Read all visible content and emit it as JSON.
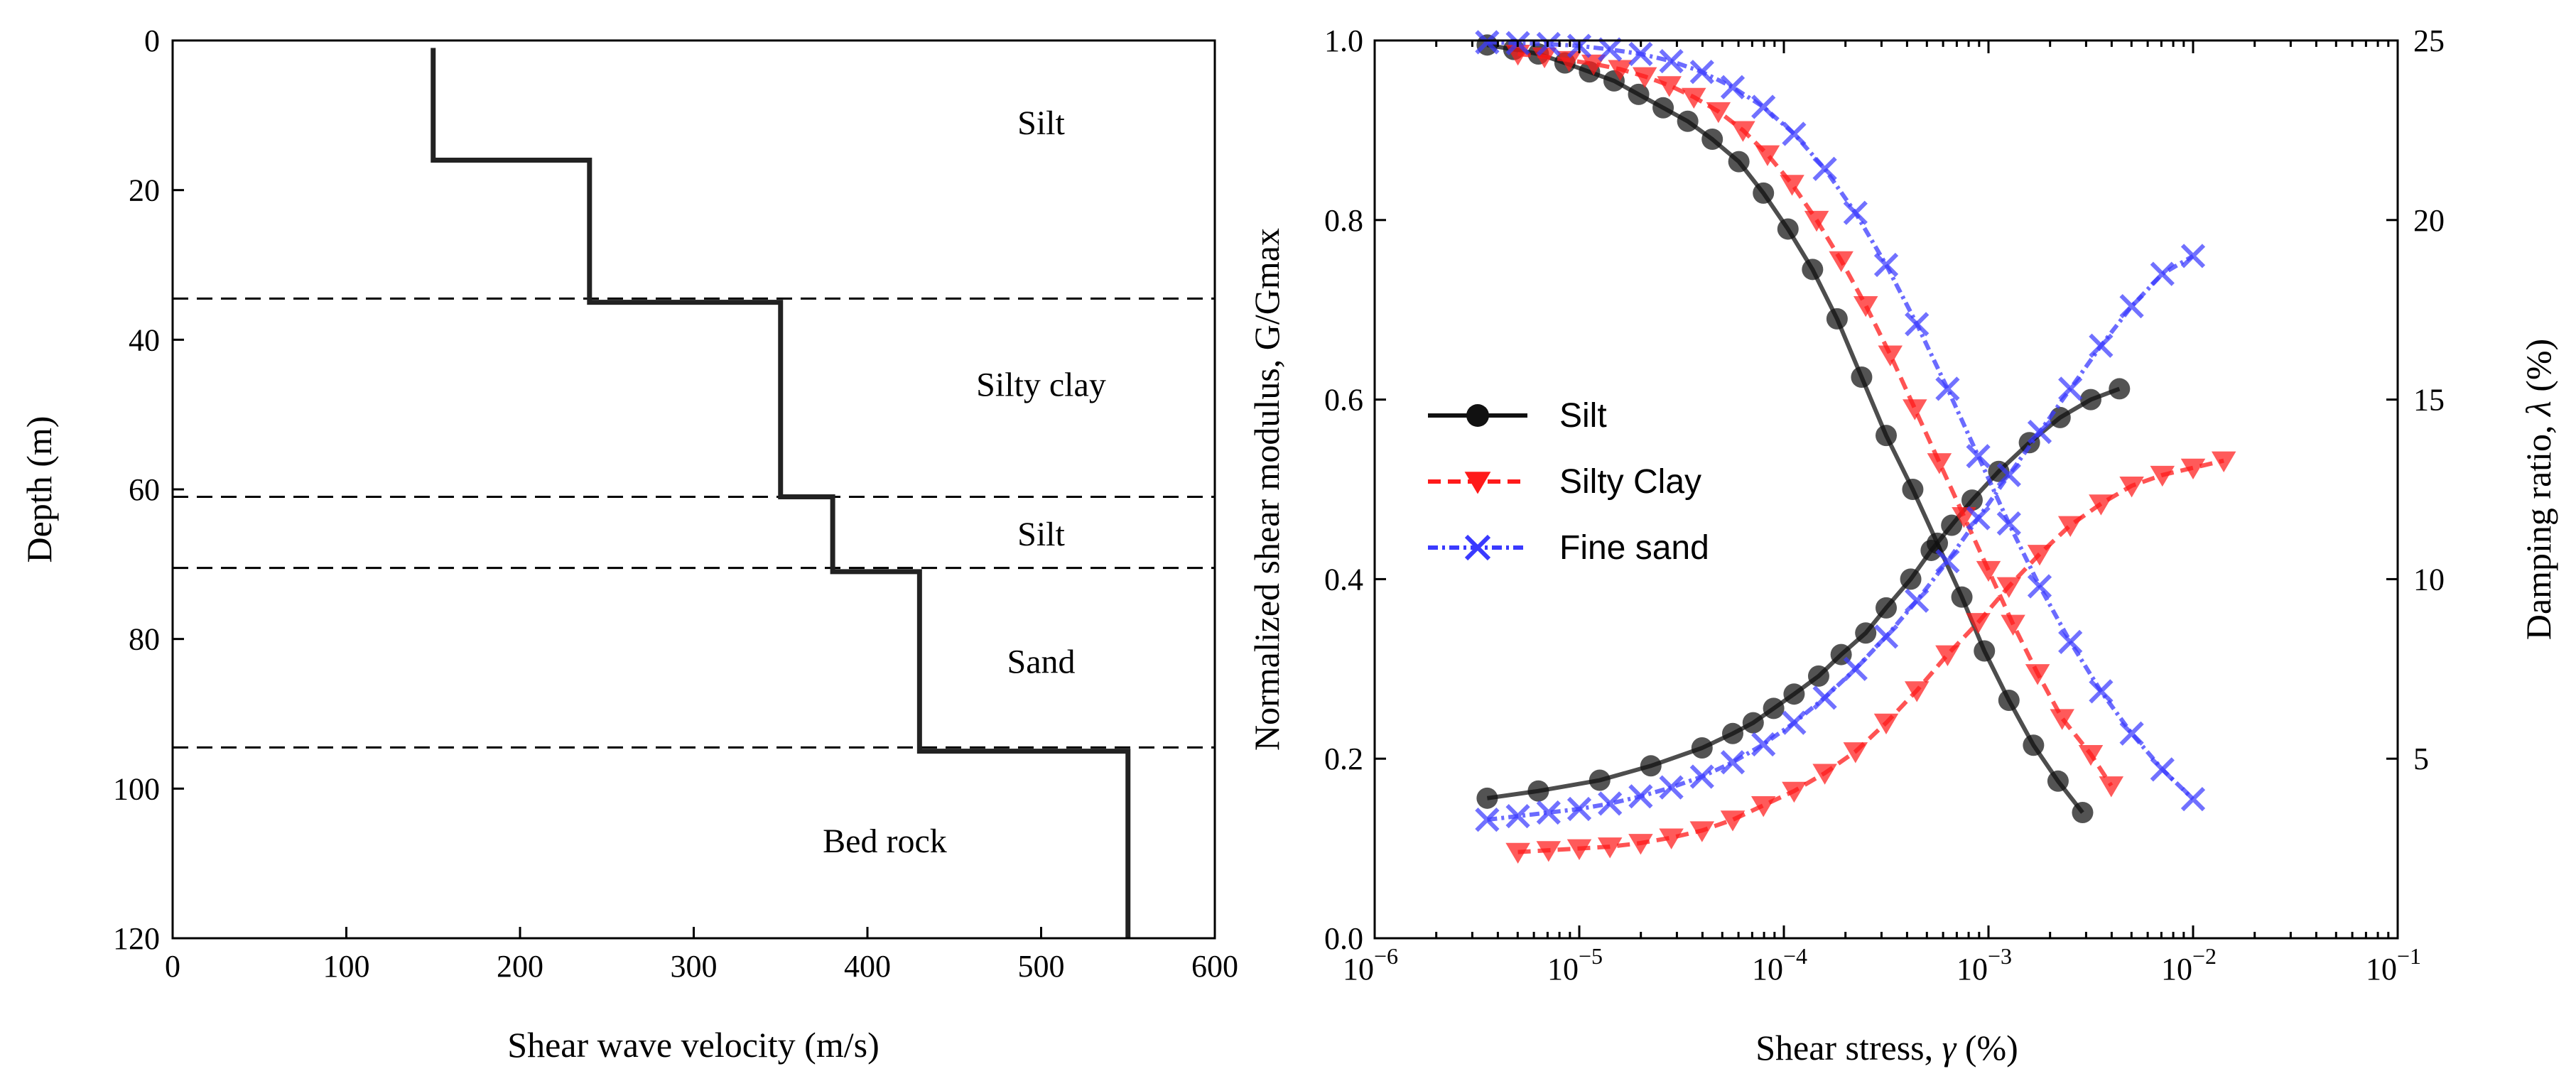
{
  "chart_data": [
    {
      "type": "line",
      "xlabel": "Shear wave velocity (m/s)",
      "ylabel": "Depth (m)",
      "xlim": [
        0,
        600
      ],
      "ylim": [
        120,
        0
      ],
      "xticks": [
        0,
        100,
        200,
        300,
        400,
        500,
        600
      ],
      "yticks": [
        0,
        20,
        40,
        60,
        80,
        100,
        120
      ],
      "profile": {
        "name": "Vs profile",
        "color": "#222222",
        "points": [
          [
            150,
            1
          ],
          [
            150,
            16
          ],
          [
            240,
            16
          ],
          [
            240,
            35
          ],
          [
            350,
            35
          ],
          [
            350,
            61
          ],
          [
            380,
            61
          ],
          [
            380,
            71
          ],
          [
            430,
            71
          ],
          [
            430,
            95
          ],
          [
            550,
            95
          ],
          [
            550,
            120
          ]
        ]
      },
      "layer_boundaries": [
        34.5,
        61,
        70.5,
        94.5
      ],
      "layers": [
        {
          "label": "Silt",
          "x": 500,
          "y": 11
        },
        {
          "label": "Silty clay",
          "x": 500,
          "y": 46
        },
        {
          "label": "Silt",
          "x": 500,
          "y": 66
        },
        {
          "label": "Sand",
          "x": 500,
          "y": 83
        },
        {
          "label": "Bed rock",
          "x": 410,
          "y": 107
        }
      ]
    },
    {
      "type": "line",
      "xlabel_prefix": "Shear stress, ",
      "xlabel_symbol": "γ",
      "xlabel_suffix": " (%)",
      "ylabel": "Normalized shear modulus, G/Gmax",
      "y2label_prefix": "Damping ratio, ",
      "y2label_symbol": "λ",
      "y2label_suffix": " (%)",
      "xscale": "log",
      "xlim_exp": [
        -6,
        -1
      ],
      "xtick_base": "10",
      "xtick_exponents": [
        "−6",
        "−5",
        "−4",
        "−3",
        "−2",
        "−1"
      ],
      "ylim": [
        0,
        1
      ],
      "yticks": [
        "0.0",
        "0.2",
        "0.4",
        "0.6",
        "0.8",
        "1.0"
      ],
      "y2lim": [
        0,
        25
      ],
      "y2ticks": [
        "5",
        "10",
        "15",
        "20",
        "25"
      ],
      "legend": {
        "position": "center-left"
      },
      "series": [
        {
          "name": "Silt",
          "color": "#111111",
          "marker": "circle",
          "dash": "",
          "x_exp": [
            -5.45,
            -5.32,
            -5.2,
            -5.07,
            -4.95,
            -4.83,
            -4.71,
            -4.59,
            -4.47,
            -4.35,
            -4.22,
            -4.1,
            -3.98,
            -3.86,
            -3.74,
            -3.62,
            -3.5,
            -3.37,
            -3.25,
            -3.13,
            -3.02,
            -2.9,
            -2.78,
            -2.66,
            -2.54
          ],
          "modulus": [
            0.995,
            0.99,
            0.985,
            0.975,
            0.965,
            0.955,
            0.94,
            0.925,
            0.91,
            0.89,
            0.865,
            0.83,
            0.79,
            0.745,
            0.69,
            0.625,
            0.56,
            0.5,
            0.44,
            0.38,
            0.32,
            0.265,
            0.215,
            0.175,
            0.14
          ],
          "damping_x_exp": [
            -5.45,
            -5.2,
            -4.9,
            -4.65,
            -4.4,
            -4.25,
            -4.15,
            -4.05,
            -3.95,
            -3.83,
            -3.72,
            -3.6,
            -3.5,
            -3.38,
            -3.28,
            -3.18,
            -3.08,
            -2.95,
            -2.8,
            -2.65,
            -2.5,
            -2.36
          ],
          "damping": [
            3.9,
            4.1,
            4.4,
            4.8,
            5.3,
            5.7,
            6.0,
            6.4,
            6.8,
            7.3,
            7.9,
            8.5,
            9.2,
            10.0,
            10.8,
            11.5,
            12.2,
            13.0,
            13.8,
            14.5,
            15.0,
            15.3
          ]
        },
        {
          "name": "Silty Clay",
          "color": "#ff1a1a",
          "marker": "triangle-down",
          "dash": "18,10",
          "x_exp": [
            -5.3,
            -5.17,
            -5.05,
            -4.93,
            -4.8,
            -4.68,
            -4.56,
            -4.44,
            -4.32,
            -4.2,
            -4.08,
            -3.96,
            -3.84,
            -3.72,
            -3.6,
            -3.48,
            -3.36,
            -3.24,
            -3.12,
            -3.0,
            -2.88,
            -2.76,
            -2.64,
            -2.5,
            -2.4
          ],
          "modulus": [
            0.985,
            0.982,
            0.978,
            0.974,
            0.968,
            0.96,
            0.95,
            0.937,
            0.921,
            0.9,
            0.873,
            0.84,
            0.8,
            0.755,
            0.705,
            0.65,
            0.59,
            0.53,
            0.47,
            0.41,
            0.35,
            0.295,
            0.245,
            0.205,
            0.17
          ],
          "damping_x_exp": [
            -5.3,
            -5.15,
            -5.0,
            -4.85,
            -4.7,
            -4.55,
            -4.4,
            -4.25,
            -4.1,
            -3.95,
            -3.8,
            -3.65,
            -3.5,
            -3.35,
            -3.2,
            -3.05,
            -2.9,
            -2.75,
            -2.6,
            -2.45,
            -2.3,
            -2.15,
            -2.0,
            -1.85
          ],
          "damping": [
            2.4,
            2.45,
            2.5,
            2.55,
            2.65,
            2.8,
            3.0,
            3.3,
            3.7,
            4.1,
            4.6,
            5.2,
            6.0,
            6.9,
            7.9,
            8.8,
            9.8,
            10.7,
            11.5,
            12.1,
            12.6,
            12.9,
            13.1,
            13.3
          ]
        },
        {
          "name": "Fine sand",
          "color": "#3a3aff",
          "marker": "x",
          "dash": "14,6,4,6",
          "x_exp": [
            -5.45,
            -5.3,
            -5.15,
            -5.0,
            -4.85,
            -4.7,
            -4.55,
            -4.4,
            -4.25,
            -4.1,
            -3.95,
            -3.8,
            -3.65,
            -3.5,
            -3.35,
            -3.2,
            -3.05,
            -2.9,
            -2.75,
            -2.6,
            -2.45,
            -2.3,
            -2.15,
            -2.0
          ],
          "modulus": [
            0.998,
            0.997,
            0.996,
            0.994,
            0.99,
            0.985,
            0.977,
            0.965,
            0.948,
            0.926,
            0.896,
            0.857,
            0.808,
            0.75,
            0.684,
            0.612,
            0.537,
            0.462,
            0.392,
            0.33,
            0.275,
            0.228,
            0.188,
            0.155
          ],
          "damping_x_exp": [
            -5.45,
            -5.3,
            -5.15,
            -5.0,
            -4.85,
            -4.7,
            -4.55,
            -4.4,
            -4.25,
            -4.1,
            -3.95,
            -3.8,
            -3.65,
            -3.5,
            -3.35,
            -3.2,
            -3.05,
            -2.9,
            -2.75,
            -2.6,
            -2.45,
            -2.3,
            -2.15,
            -2.0
          ],
          "damping": [
            3.3,
            3.4,
            3.5,
            3.6,
            3.75,
            3.95,
            4.2,
            4.5,
            4.9,
            5.4,
            6.0,
            6.7,
            7.5,
            8.4,
            9.4,
            10.5,
            11.7,
            12.9,
            14.1,
            15.3,
            16.5,
            17.6,
            18.5,
            19.0
          ]
        }
      ]
    }
  ]
}
